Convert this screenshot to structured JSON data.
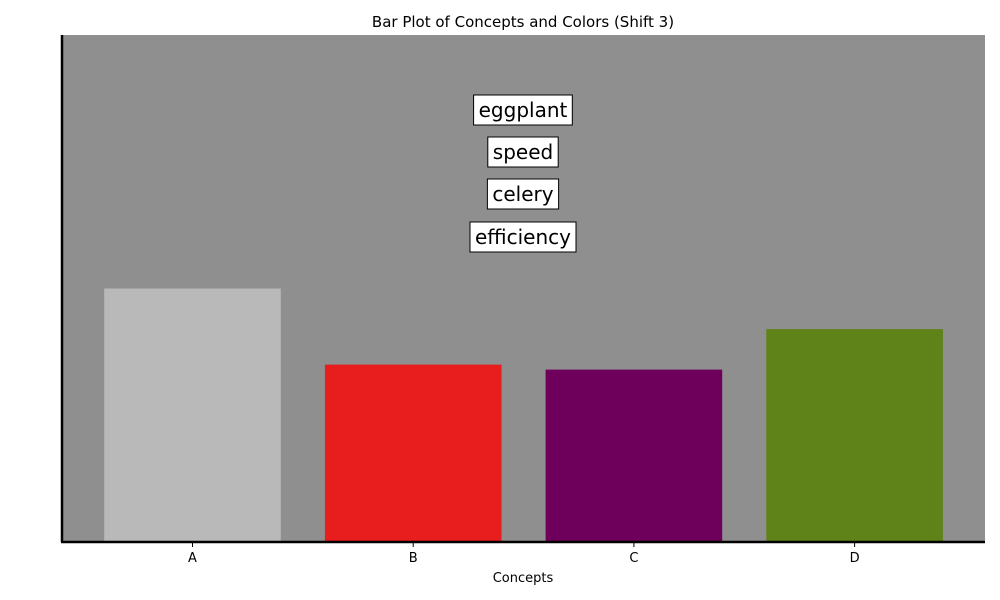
{
  "chart_data": {
    "type": "bar",
    "title": "Bar Plot of Concepts and Colors (Shift 3)",
    "xlabel": "Concepts",
    "ylabel": "",
    "categories": [
      "A",
      "B",
      "C",
      "D"
    ],
    "values": [
      5.0,
      3.5,
      3.4,
      4.2
    ],
    "bar_colors": [
      "#b9b9b9",
      "#e81e1e",
      "#6e005c",
      "#5f8219"
    ],
    "ylim": [
      0,
      10
    ],
    "plot_background": "#8f8f8f",
    "y_ticks_visible": false,
    "grid": false,
    "annotations": [
      "eggplant",
      "speed",
      "celery",
      "efficiency"
    ]
  }
}
